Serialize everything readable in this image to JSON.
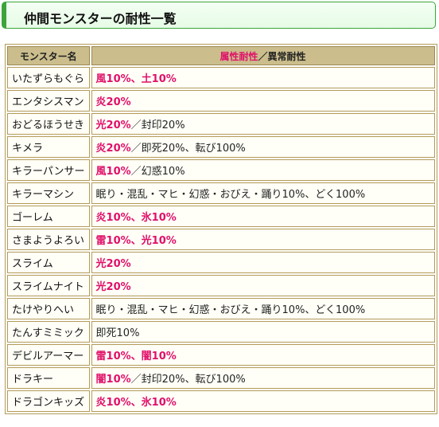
{
  "page_title": "仲間モンスターの耐性一覧",
  "table": {
    "header_name": "モンスター名",
    "header_attr": "属性耐性",
    "header_sep": "／",
    "header_status": "異常耐性",
    "rows": [
      {
        "name": "いたずらもぐら",
        "attr": "風10%、土10%",
        "status": ""
      },
      {
        "name": "エンタシスマン",
        "attr": "炎20%",
        "status": ""
      },
      {
        "name": "おどるほうせき",
        "attr": "光20%",
        "status": "／封印20%"
      },
      {
        "name": "キメラ",
        "attr": "炎20%",
        "status": "／即死20%、転び100%"
      },
      {
        "name": "キラーパンサー",
        "attr": "風10%",
        "status": "／幻惑10%"
      },
      {
        "name": "キラーマシン",
        "attr": "",
        "status": "眠り・混乱・マヒ・幻惑・おびえ・踊り10%、どく100%"
      },
      {
        "name": "ゴーレム",
        "attr": "炎10%、氷10%",
        "status": ""
      },
      {
        "name": "さまようよろい",
        "attr": "雷10%、光10%",
        "status": ""
      },
      {
        "name": "スライム",
        "attr": "光20%",
        "status": ""
      },
      {
        "name": "スライムナイト",
        "attr": "光20%",
        "status": ""
      },
      {
        "name": "たけやりへい",
        "attr": "",
        "status": "眠り・混乱・マヒ・幻惑・おびえ・踊り10%、どく100%"
      },
      {
        "name": "たんすミミック",
        "attr": "",
        "status": "即死10%"
      },
      {
        "name": "デビルアーマー",
        "attr": "雷10%、闇10%",
        "status": ""
      },
      {
        "name": "ドラキー",
        "attr": "闇10%",
        "status": "／封印20%、転び100%"
      },
      {
        "name": "ドラゴンキッズ",
        "attr": "炎10%、氷10%",
        "status": ""
      }
    ]
  },
  "colors": {
    "attr_text": "#e0106a",
    "header_bg": "#cbbe8c",
    "title_border": "#3ba53b"
  }
}
